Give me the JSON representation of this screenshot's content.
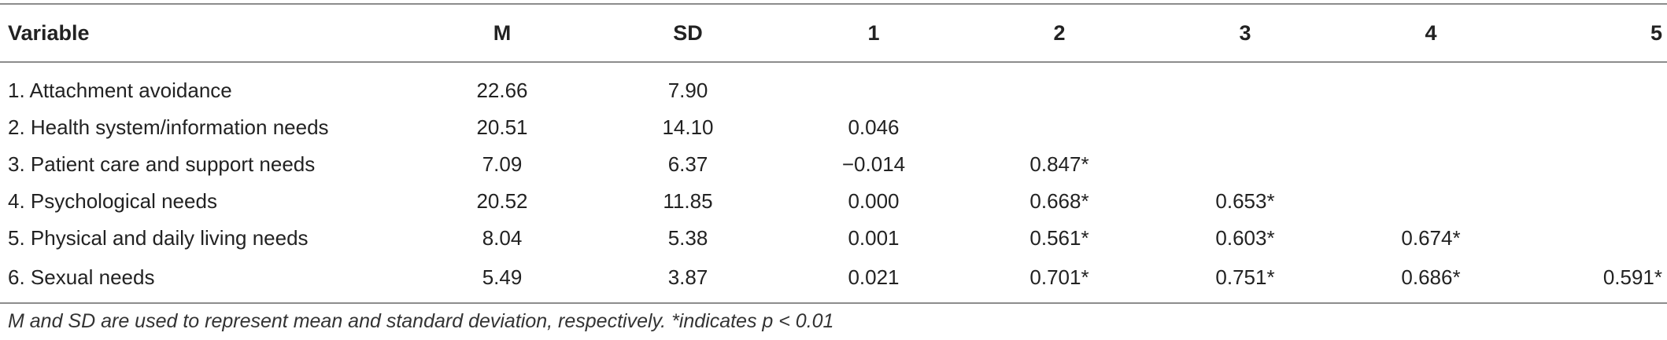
{
  "table": {
    "headers": [
      "Variable",
      "M",
      "SD",
      "1",
      "2",
      "3",
      "4",
      "5"
    ],
    "rows": [
      {
        "variable": "1. Attachment avoidance",
        "m": "22.66",
        "sd": "7.90",
        "c1": "",
        "c2": "",
        "c3": "",
        "c4": "",
        "c5": ""
      },
      {
        "variable": "2. Health system/information needs",
        "m": "20.51",
        "sd": "14.10",
        "c1": "0.046",
        "c2": "",
        "c3": "",
        "c4": "",
        "c5": ""
      },
      {
        "variable": "3. Patient care and support needs",
        "m": "7.09",
        "sd": "6.37",
        "c1": "−0.014",
        "c2": "0.847*",
        "c3": "",
        "c4": "",
        "c5": ""
      },
      {
        "variable": "4. Psychological needs",
        "m": "20.52",
        "sd": "11.85",
        "c1": "0.000",
        "c2": "0.668*",
        "c3": "0.653*",
        "c4": "",
        "c5": ""
      },
      {
        "variable": "5. Physical and daily living needs",
        "m": "8.04",
        "sd": "5.38",
        "c1": "0.001",
        "c2": "0.561*",
        "c3": "0.603*",
        "c4": "0.674*",
        "c5": ""
      },
      {
        "variable": "6. Sexual needs",
        "m": "5.49",
        "sd": "3.87",
        "c1": "0.021",
        "c2": "0.701*",
        "c3": "0.751*",
        "c4": "0.686*",
        "c5": "0.591*"
      }
    ]
  },
  "footnote": "M and SD are used to represent mean and standard deviation, respectively. *indicates p < 0.01"
}
